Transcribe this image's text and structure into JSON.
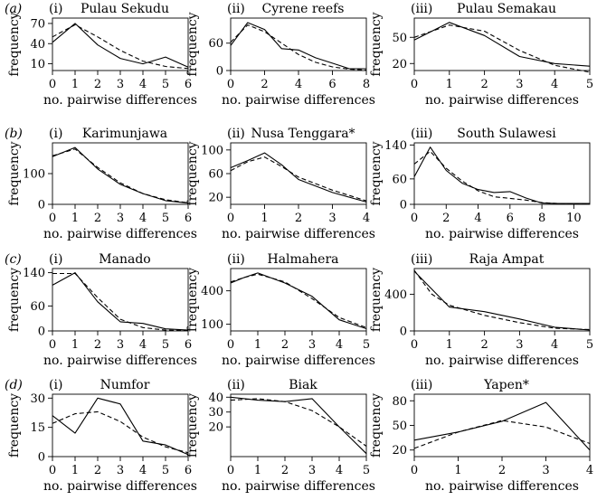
{
  "figure": {
    "row_letters": [
      "(a)",
      "(b)",
      "(c)",
      "(d)"
    ],
    "ylabel": "frequency",
    "xlabel": "no. pairwise differences"
  },
  "chart_data": [
    {
      "type": "line",
      "row": "(a)",
      "panel": "(i)",
      "title": "Pulau Sekudu",
      "xlim": [
        0,
        6
      ],
      "ylim": [
        0,
        78
      ],
      "xticks": [
        0,
        1,
        2,
        3,
        4,
        5,
        6
      ],
      "yticks": [
        10,
        40,
        70
      ],
      "series": [
        {
          "style": "solid",
          "x": [
            0,
            1,
            2,
            3,
            4,
            5,
            6
          ],
          "y": [
            42,
            70,
            38,
            18,
            10,
            20,
            5
          ]
        },
        {
          "style": "dashed",
          "x": [
            0,
            1,
            2,
            3,
            4,
            5,
            6
          ],
          "y": [
            50,
            68,
            50,
            30,
            14,
            6,
            3
          ]
        }
      ]
    },
    {
      "type": "line",
      "row": "(a)",
      "panel": "(ii)",
      "title": "Cyrene reefs",
      "xlim": [
        0,
        8
      ],
      "ylim": [
        0,
        115
      ],
      "xticks": [
        0,
        2,
        4,
        6,
        8
      ],
      "yticks": [
        0,
        60
      ],
      "series": [
        {
          "style": "solid",
          "x": [
            0,
            1,
            2,
            3,
            4,
            5,
            6,
            7,
            8
          ],
          "y": [
            55,
            105,
            90,
            48,
            45,
            28,
            16,
            4,
            4
          ]
        },
        {
          "style": "dashed",
          "x": [
            0,
            1,
            2,
            3,
            4,
            5,
            6,
            7,
            8
          ],
          "y": [
            62,
            100,
            85,
            60,
            35,
            18,
            8,
            3,
            1
          ]
        }
      ]
    },
    {
      "type": "line",
      "row": "(a)",
      "panel": "(iii)",
      "title": "Pulau Semakau",
      "xlim": [
        0,
        5
      ],
      "ylim": [
        12,
        72
      ],
      "xticks": [
        0,
        1,
        2,
        3,
        4,
        5
      ],
      "yticks": [
        20,
        50
      ],
      "series": [
        {
          "style": "solid",
          "x": [
            0,
            1,
            2,
            3,
            4,
            5
          ],
          "y": [
            47,
            67,
            52,
            28,
            20,
            17
          ]
        },
        {
          "style": "dashed",
          "x": [
            0,
            1,
            2,
            3,
            4,
            5
          ],
          "y": [
            50,
            64,
            57,
            35,
            18,
            10
          ]
        }
      ]
    },
    {
      "type": "line",
      "row": "(b)",
      "panel": "(i)",
      "title": "Karimunjawa",
      "xlim": [
        0,
        6
      ],
      "ylim": [
        0,
        200
      ],
      "xticks": [
        0,
        1,
        2,
        3,
        4,
        5,
        6
      ],
      "yticks": [
        0,
        100
      ],
      "series": [
        {
          "style": "solid",
          "x": [
            0,
            1,
            2,
            3,
            4,
            5,
            6
          ],
          "y": [
            155,
            185,
            115,
            65,
            35,
            12,
            4
          ]
        },
        {
          "style": "dashed",
          "x": [
            0,
            1,
            2,
            3,
            4,
            5,
            6
          ],
          "y": [
            158,
            180,
            120,
            70,
            35,
            15,
            5
          ]
        }
      ]
    },
    {
      "type": "line",
      "row": "(b)",
      "panel": "(ii)",
      "title": "Nusa Tenggara*",
      "xlim": [
        0,
        4
      ],
      "ylim": [
        8,
        112
      ],
      "xticks": [
        0,
        1,
        2,
        3,
        4
      ],
      "yticks": [
        20,
        60,
        100
      ],
      "series": [
        {
          "style": "solid",
          "x": [
            0,
            0.5,
            1,
            1.5,
            2,
            3,
            4
          ],
          "y": [
            70,
            82,
            95,
            75,
            50,
            28,
            12
          ]
        },
        {
          "style": "dashed",
          "x": [
            0,
            0.5,
            1,
            1.5,
            2,
            3,
            4
          ],
          "y": [
            65,
            80,
            88,
            72,
            54,
            32,
            14
          ]
        }
      ]
    },
    {
      "type": "line",
      "row": "(b)",
      "panel": "(iii)",
      "title": "South Sulawesi",
      "xlim": [
        0,
        11
      ],
      "ylim": [
        0,
        145
      ],
      "xticks": [
        0,
        2,
        4,
        6,
        8,
        10
      ],
      "yticks": [
        0,
        60,
        140
      ],
      "series": [
        {
          "style": "solid",
          "x": [
            0,
            1,
            2,
            3,
            4,
            5,
            6,
            7,
            8,
            9,
            10,
            11
          ],
          "y": [
            65,
            135,
            80,
            50,
            35,
            28,
            30,
            15,
            3,
            2,
            2,
            2
          ]
        },
        {
          "style": "dashed",
          "x": [
            0,
            1,
            2,
            3,
            4,
            5,
            6,
            7,
            8,
            9,
            10,
            11
          ],
          "y": [
            95,
            125,
            85,
            55,
            32,
            18,
            14,
            10,
            4,
            2,
            1,
            1
          ]
        }
      ]
    },
    {
      "type": "line",
      "row": "(c)",
      "panel": "(i)",
      "title": "Manado",
      "xlim": [
        0,
        6
      ],
      "ylim": [
        0,
        150
      ],
      "xticks": [
        0,
        1,
        2,
        3,
        4,
        5,
        6
      ],
      "yticks": [
        0,
        60,
        140
      ],
      "series": [
        {
          "style": "solid",
          "x": [
            0,
            1,
            2,
            3,
            4,
            5,
            6
          ],
          "y": [
            110,
            140,
            70,
            22,
            18,
            5,
            2
          ]
        },
        {
          "style": "dashed",
          "x": [
            0,
            1,
            2,
            3,
            4,
            5,
            6
          ],
          "y": [
            138,
            138,
            80,
            28,
            8,
            2,
            1
          ]
        }
      ]
    },
    {
      "type": "line",
      "row": "(c)",
      "panel": "(ii)",
      "title": "Halmahera",
      "xlim": [
        0,
        5
      ],
      "ylim": [
        40,
        600
      ],
      "xticks": [
        0,
        1,
        2,
        3,
        4,
        5
      ],
      "yticks": [
        100,
        400
      ],
      "series": [
        {
          "style": "solid",
          "x": [
            0,
            0.5,
            1,
            2,
            3,
            4,
            5
          ],
          "y": [
            470,
            520,
            560,
            470,
            350,
            140,
            60
          ]
        },
        {
          "style": "dashed",
          "x": [
            0,
            0.5,
            1,
            2,
            3,
            4,
            5
          ],
          "y": [
            480,
            520,
            550,
            480,
            330,
            160,
            70
          ]
        }
      ]
    },
    {
      "type": "line",
      "row": "(c)",
      "panel": "(iii)",
      "title": "Raja Ampat",
      "xlim": [
        0,
        5
      ],
      "ylim": [
        0,
        680
      ],
      "xticks": [
        0,
        1,
        2,
        3,
        4,
        5
      ],
      "yticks": [
        0,
        400
      ],
      "series": [
        {
          "style": "solid",
          "x": [
            0,
            1,
            2,
            3,
            4,
            5
          ],
          "y": [
            650,
            260,
            210,
            130,
            40,
            10
          ]
        },
        {
          "style": "dashed",
          "x": [
            0,
            0.5,
            1,
            2,
            3,
            4,
            5
          ],
          "y": [
            660,
            400,
            280,
            170,
            90,
            30,
            15
          ]
        }
      ]
    },
    {
      "type": "line",
      "row": "(d)",
      "panel": "(i)",
      "title": "Numfor",
      "xlim": [
        0,
        6
      ],
      "ylim": [
        0,
        32
      ],
      "xticks": [
        0,
        1,
        2,
        3,
        4,
        5,
        6
      ],
      "yticks": [
        0,
        15,
        30
      ],
      "series": [
        {
          "style": "solid",
          "x": [
            0,
            1,
            2,
            3,
            4,
            5,
            6
          ],
          "y": [
            21,
            12,
            30,
            27,
            8,
            6,
            1
          ]
        },
        {
          "style": "dashed",
          "x": [
            0,
            1,
            2,
            3,
            4,
            5,
            6
          ],
          "y": [
            17,
            22,
            23,
            18,
            10,
            5,
            2
          ]
        }
      ]
    },
    {
      "type": "line",
      "row": "(d)",
      "panel": "(ii)",
      "title": "Biak",
      "xlim": [
        0,
        5
      ],
      "ylim": [
        0,
        42
      ],
      "xticks": [
        0,
        1,
        2,
        3,
        4,
        5
      ],
      "yticks": [
        20,
        30,
        40
      ],
      "series": [
        {
          "style": "solid",
          "x": [
            0,
            1,
            2,
            3,
            4,
            5
          ],
          "y": [
            40,
            38,
            37,
            39,
            20,
            2
          ]
        },
        {
          "style": "dashed",
          "x": [
            0,
            1,
            2,
            3,
            4,
            5
          ],
          "y": [
            38,
            39,
            37,
            31,
            20,
            7
          ]
        }
      ]
    },
    {
      "type": "line",
      "row": "(d)",
      "panel": "(iii)",
      "title": "Yapen*",
      "xlim": [
        0,
        4
      ],
      "ylim": [
        12,
        88
      ],
      "xticks": [
        0,
        1,
        2,
        3,
        4
      ],
      "yticks": [
        20,
        50,
        80
      ],
      "series": [
        {
          "style": "solid",
          "x": [
            0,
            1,
            2,
            3,
            4
          ],
          "y": [
            32,
            42,
            55,
            78,
            20
          ]
        },
        {
          "style": "dashed",
          "x": [
            0,
            1,
            2,
            3,
            4
          ],
          "y": [
            22,
            42,
            56,
            48,
            28
          ]
        }
      ]
    }
  ]
}
